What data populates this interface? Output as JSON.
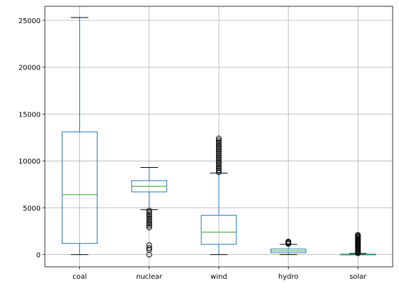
{
  "chart_data": {
    "type": "box",
    "title": "",
    "xlabel": "",
    "ylabel": "",
    "ylim": [
      -1300,
      26500
    ],
    "yticks": [
      0,
      5000,
      10000,
      15000,
      20000,
      25000
    ],
    "grid": true,
    "colors": {
      "box": "#1f77b4",
      "median": "#2ca02c",
      "whisker": "#1f77b4",
      "cap": "#000000",
      "flier": "#000000",
      "grid": "#b0b0b0"
    },
    "categories": [
      "coal",
      "nuclear",
      "wind",
      "hydro",
      "solar"
    ],
    "boxes": [
      {
        "name": "coal",
        "min": 0,
        "q1": 1200,
        "median": 6400,
        "q3": 13100,
        "max": 25300,
        "outliers": []
      },
      {
        "name": "nuclear",
        "min": 4800,
        "q1": 6700,
        "median": 7300,
        "q3": 7900,
        "max": 9300,
        "outliers": [
          4700,
          4500,
          4300,
          4100,
          3900,
          3700,
          3500,
          3300,
          3100,
          2900,
          1000,
          700,
          500,
          0
        ]
      },
      {
        "name": "wind",
        "min": 0,
        "q1": 1100,
        "median": 2400,
        "q3": 4200,
        "max": 8700,
        "outliers": [
          8800,
          9000,
          9200,
          9400,
          9600,
          9800,
          10000,
          10200,
          10400,
          10600,
          10800,
          11000,
          11200,
          11400,
          11600,
          11800,
          12000,
          12200,
          12400
        ]
      },
      {
        "name": "hydro",
        "min": 0,
        "q1": 200,
        "median": 400,
        "q3": 600,
        "max": 1100,
        "outliers": [
          1150,
          1200,
          1300,
          1400
        ]
      },
      {
        "name": "solar",
        "min": 0,
        "q1": 0,
        "median": 0,
        "q3": 50,
        "max": 120,
        "outliers": [
          150,
          250,
          350,
          450,
          550,
          650,
          750,
          850,
          950,
          1050,
          1150,
          1250,
          1350,
          1450,
          1550,
          1650,
          1750,
          1850,
          1950,
          2050,
          2100
        ]
      }
    ]
  }
}
